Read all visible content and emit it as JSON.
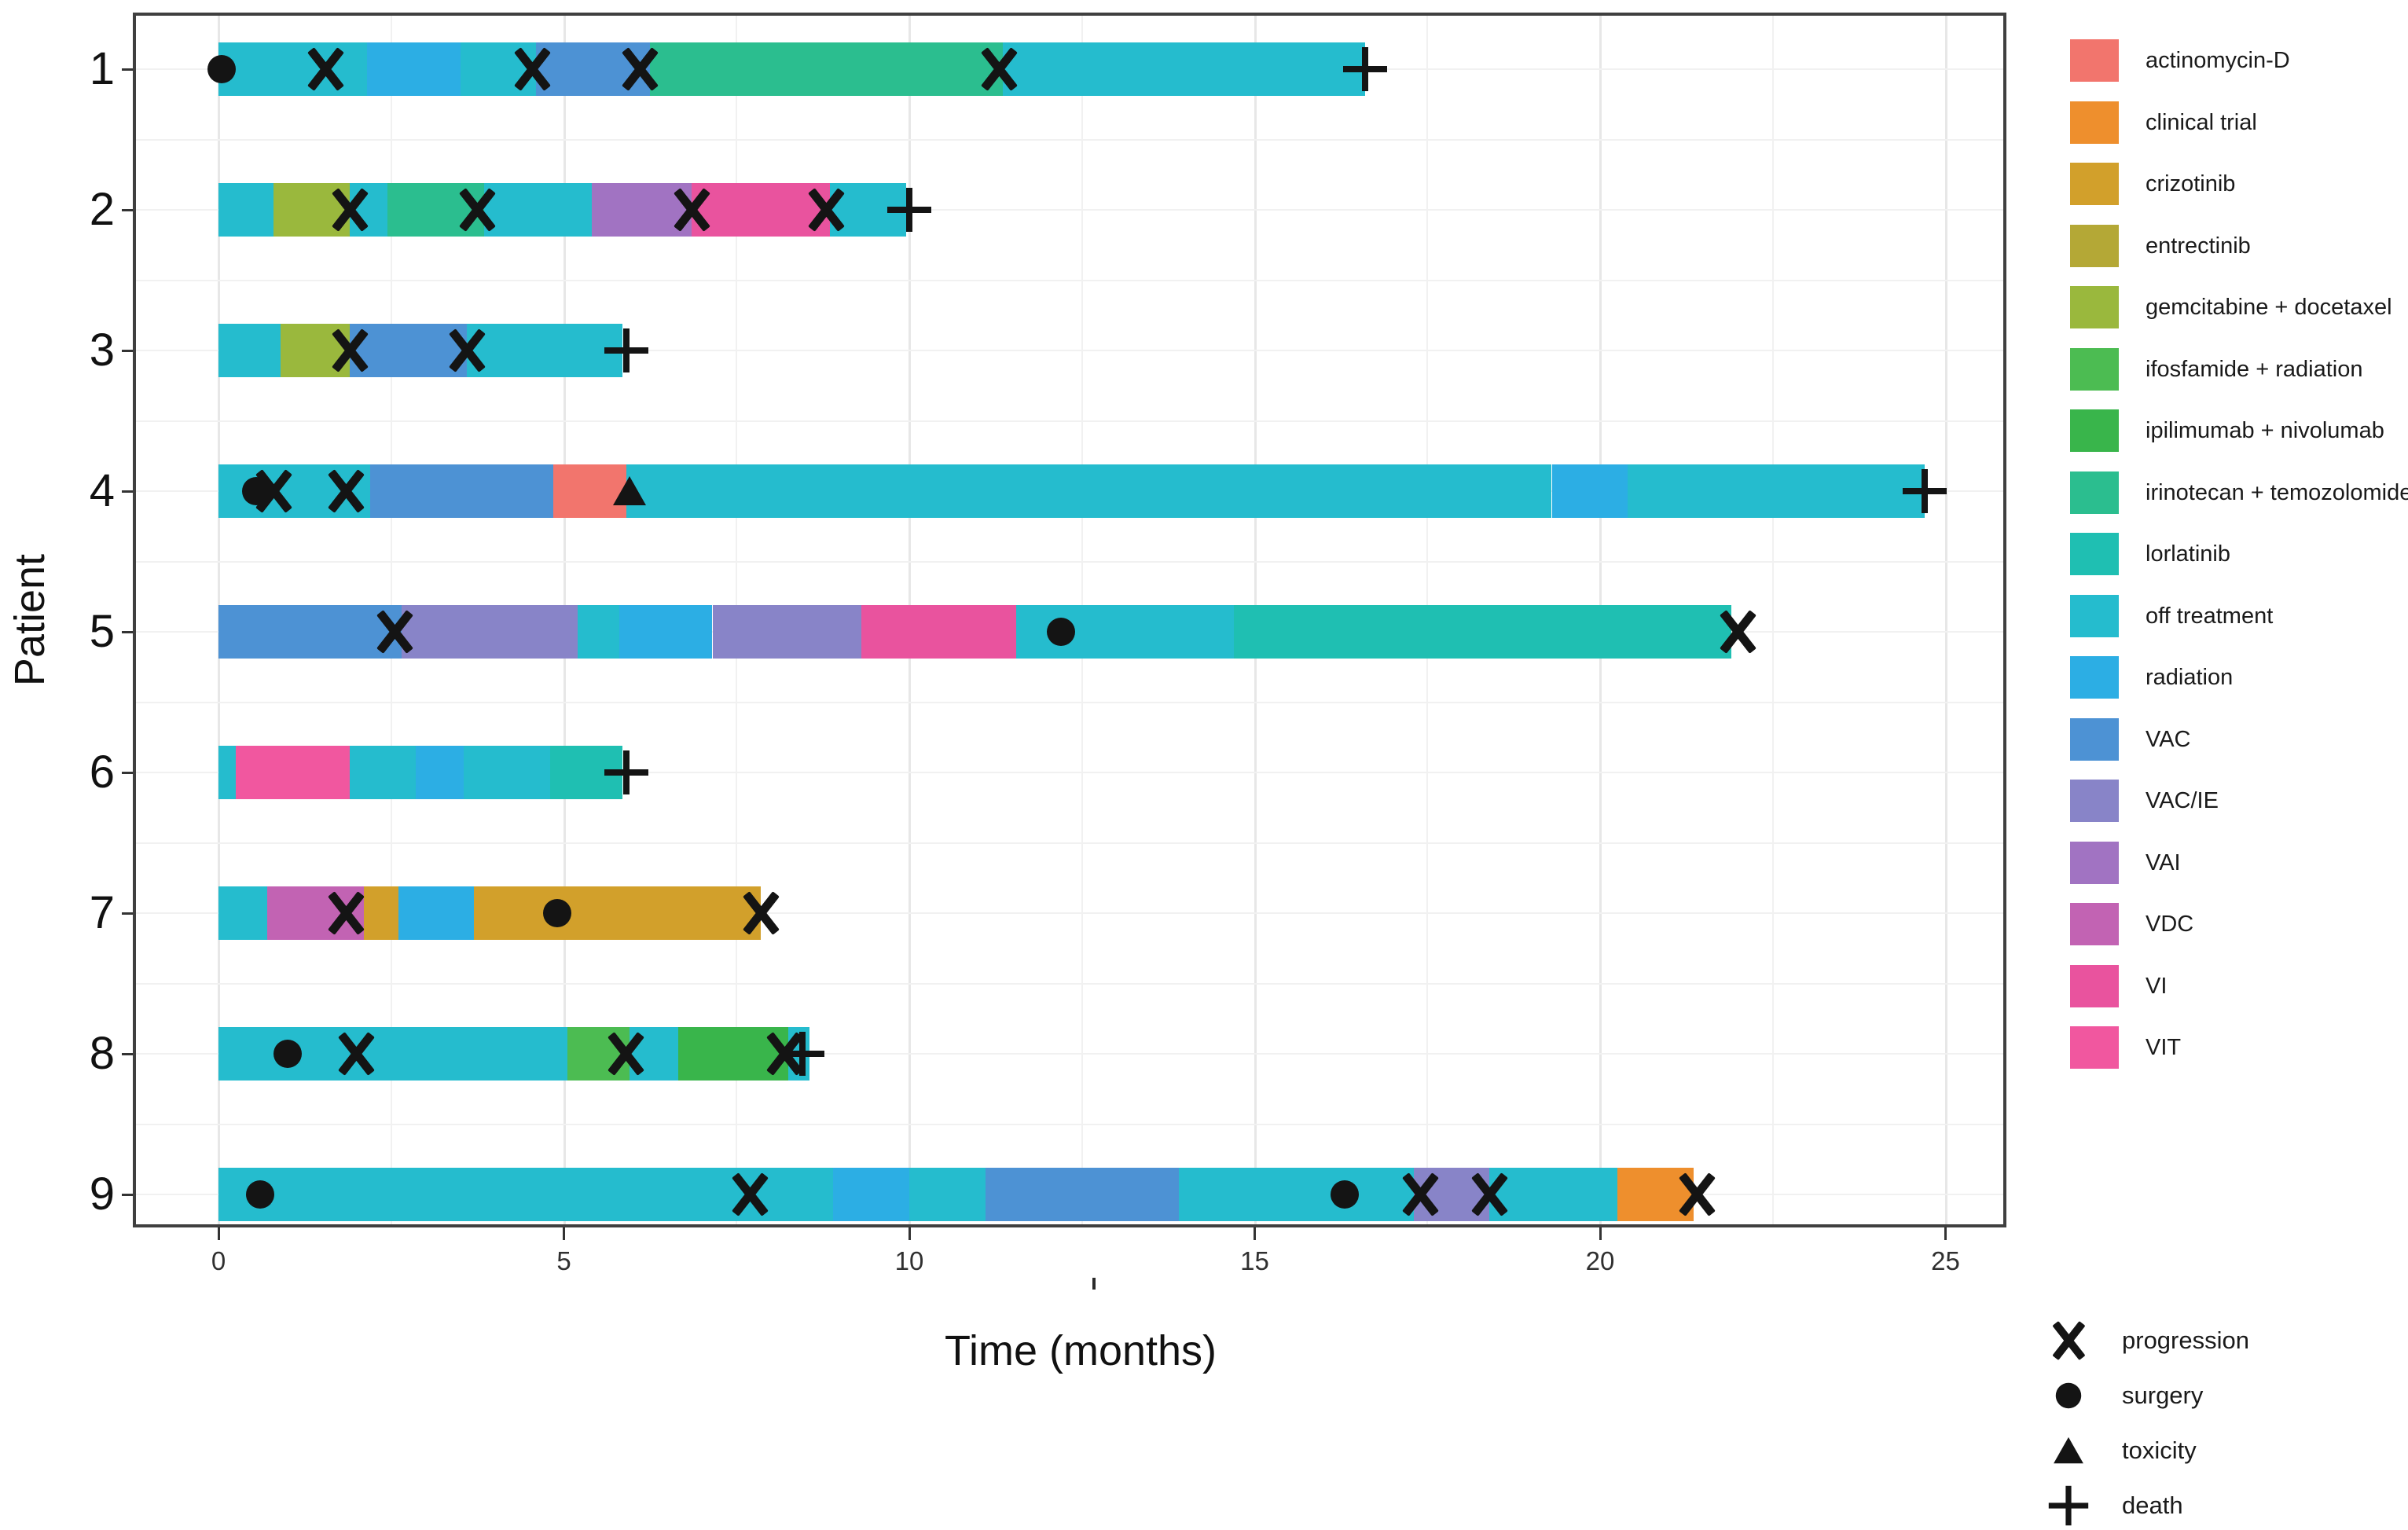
{
  "figure": {
    "background": "#ffffff"
  },
  "axes": {
    "x_title": "Time (months)",
    "y_title": "Patient",
    "x_ticks": [
      "0",
      "5",
      "10",
      "15",
      "20",
      "25"
    ],
    "x_tick_values": [
      0,
      5,
      10,
      15,
      20,
      25
    ],
    "x_minor_step": 2.5
  },
  "style_colors": {
    "marker": "#141414",
    "panel_border": "#3f3f3f",
    "grid_major": "#e7e7e7",
    "grid_minor": "#f1f1f1",
    "tick": "#333333",
    "text": "#111111"
  },
  "chart_data": {
    "type": "bar",
    "subtype": "swimmer-timeline",
    "title": "",
    "xlabel": "Time (months)",
    "ylabel": "Patient",
    "xlim": [
      0,
      25
    ],
    "grid": "minor-and-major-vertical, faint",
    "legend_position": "right",
    "treatments": [
      {
        "name": "actinomycin-D",
        "color": "#F2756D"
      },
      {
        "name": "clinical trial",
        "color": "#EE8F2D"
      },
      {
        "name": "crizotinib",
        "color": "#D2A02B"
      },
      {
        "name": "entrectinib",
        "color": "#B4A836"
      },
      {
        "name": "gemcitabine + docetaxel",
        "color": "#9AB83D"
      },
      {
        "name": "ifosfamide + radiation",
        "color": "#4CBC52"
      },
      {
        "name": "ipilimumab + nivolumab",
        "color": "#39B54B"
      },
      {
        "name": "irinotecan + temozolomide",
        "color": "#2BBE8F"
      },
      {
        "name": "lorlatinib",
        "color": "#1FBFB2"
      },
      {
        "name": "off treatment",
        "color": "#25BCCE"
      },
      {
        "name": "radiation",
        "color": "#2CAEE4"
      },
      {
        "name": "VAC",
        "color": "#4D92D4"
      },
      {
        "name": "VAC/IE",
        "color": "#8884C8"
      },
      {
        "name": "VAI",
        "color": "#A173C2"
      },
      {
        "name": "VDC",
        "color": "#C263B3"
      },
      {
        "name": "VI",
        "color": "#E9539E"
      },
      {
        "name": "VIT",
        "color": "#F1579F"
      }
    ],
    "event_types": [
      {
        "name": "progression",
        "marker": "bold-x"
      },
      {
        "name": "surgery",
        "marker": "filled-circle"
      },
      {
        "name": "toxicity",
        "marker": "filled-triangle"
      },
      {
        "name": "death",
        "marker": "plus-cross"
      }
    ],
    "patients": [
      {
        "id": "1",
        "segments": [
          {
            "treatment": "off treatment",
            "start": 0,
            "end": 2.15
          },
          {
            "treatment": "radiation",
            "start": 2.15,
            "end": 3.5
          },
          {
            "treatment": "off treatment",
            "start": 3.5,
            "end": 4.6
          },
          {
            "treatment": "VAC",
            "start": 4.6,
            "end": 6.25
          },
          {
            "treatment": "irinotecan + temozolomide",
            "start": 6.25,
            "end": 11.35
          },
          {
            "treatment": "off treatment",
            "start": 11.35,
            "end": 16.6
          }
        ],
        "events": [
          {
            "type": "surgery",
            "time": 0.05
          },
          {
            "type": "progression",
            "time": 1.55
          },
          {
            "type": "progression",
            "time": 4.55
          },
          {
            "type": "progression",
            "time": 6.1
          },
          {
            "type": "progression",
            "time": 11.3
          },
          {
            "type": "death",
            "time": 16.6
          }
        ]
      },
      {
        "id": "2",
        "segments": [
          {
            "treatment": "off treatment",
            "start": 0,
            "end": 0.8
          },
          {
            "treatment": "gemcitabine + docetaxel",
            "start": 0.8,
            "end": 1.9
          },
          {
            "treatment": "off treatment",
            "start": 1.9,
            "end": 2.45
          },
          {
            "treatment": "irinotecan + temozolomide",
            "start": 2.45,
            "end": 3.85
          },
          {
            "treatment": "off treatment",
            "start": 3.85,
            "end": 5.4
          },
          {
            "treatment": "VAI",
            "start": 5.4,
            "end": 6.85
          },
          {
            "treatment": "VI",
            "start": 6.85,
            "end": 8.85
          },
          {
            "treatment": "off treatment",
            "start": 8.85,
            "end": 9.95
          }
        ],
        "events": [
          {
            "type": "progression",
            "time": 1.9
          },
          {
            "type": "progression",
            "time": 3.75
          },
          {
            "type": "progression",
            "time": 6.85
          },
          {
            "type": "progression",
            "time": 8.8
          },
          {
            "type": "death",
            "time": 10.0
          }
        ]
      },
      {
        "id": "3",
        "segments": [
          {
            "treatment": "off treatment",
            "start": 0,
            "end": 0.9
          },
          {
            "treatment": "gemcitabine + docetaxel",
            "start": 0.9,
            "end": 1.9
          },
          {
            "treatment": "VAC",
            "start": 1.9,
            "end": 3.6
          },
          {
            "treatment": "off treatment",
            "start": 3.6,
            "end": 5.85
          }
        ],
        "events": [
          {
            "type": "progression",
            "time": 1.9
          },
          {
            "type": "progression",
            "time": 3.6
          },
          {
            "type": "death",
            "time": 5.9
          }
        ]
      },
      {
        "id": "4",
        "segments": [
          {
            "treatment": "off treatment",
            "start": 0,
            "end": 2.2
          },
          {
            "treatment": "VAC",
            "start": 2.2,
            "end": 4.85
          },
          {
            "treatment": "actinomycin-D",
            "start": 4.85,
            "end": 5.9
          },
          {
            "treatment": "off treatment",
            "start": 5.9,
            "end": 19.3
          },
          {
            "treatment": "radiation",
            "start": 19.3,
            "end": 20.4
          },
          {
            "treatment": "off treatment",
            "start": 20.4,
            "end": 24.7
          }
        ],
        "events": [
          {
            "type": "surgery",
            "time": 0.55
          },
          {
            "type": "progression",
            "time": 0.8
          },
          {
            "type": "progression",
            "time": 1.85
          },
          {
            "type": "toxicity",
            "time": 5.95
          },
          {
            "type": "death",
            "time": 24.7
          }
        ]
      },
      {
        "id": "5",
        "segments": [
          {
            "treatment": "VAC",
            "start": 0,
            "end": 2.65
          },
          {
            "treatment": "VAC/IE",
            "start": 2.65,
            "end": 5.2
          },
          {
            "treatment": "off treatment",
            "start": 5.2,
            "end": 5.8
          },
          {
            "treatment": "radiation",
            "start": 5.8,
            "end": 7.15
          },
          {
            "treatment": "VAC/IE",
            "start": 7.15,
            "end": 9.3
          },
          {
            "treatment": "VI",
            "start": 9.3,
            "end": 11.55
          },
          {
            "treatment": "off treatment",
            "start": 11.55,
            "end": 14.7
          },
          {
            "treatment": "lorlatinib",
            "start": 14.7,
            "end": 21.9
          }
        ],
        "events": [
          {
            "type": "progression",
            "time": 2.55
          },
          {
            "type": "surgery",
            "time": 12.2
          },
          {
            "type": "progression",
            "time": 22.0
          }
        ]
      },
      {
        "id": "6",
        "segments": [
          {
            "treatment": "off treatment",
            "start": 0,
            "end": 0.25
          },
          {
            "treatment": "VIT",
            "start": 0.25,
            "end": 1.9
          },
          {
            "treatment": "off treatment",
            "start": 1.9,
            "end": 2.85
          },
          {
            "treatment": "radiation",
            "start": 2.85,
            "end": 3.55
          },
          {
            "treatment": "off treatment",
            "start": 3.55,
            "end": 4.8
          },
          {
            "treatment": "lorlatinib",
            "start": 4.8,
            "end": 5.85
          }
        ],
        "events": [
          {
            "type": "death",
            "time": 5.9
          }
        ]
      },
      {
        "id": "7",
        "segments": [
          {
            "treatment": "off treatment",
            "start": 0,
            "end": 0.7
          },
          {
            "treatment": "VDC",
            "start": 0.7,
            "end": 2.1
          },
          {
            "treatment": "crizotinib",
            "start": 2.1,
            "end": 2.6
          },
          {
            "treatment": "radiation",
            "start": 2.6,
            "end": 3.7
          },
          {
            "treatment": "crizotinib",
            "start": 3.7,
            "end": 7.85
          }
        ],
        "events": [
          {
            "type": "progression",
            "time": 1.85
          },
          {
            "type": "surgery",
            "time": 4.9
          },
          {
            "type": "progression",
            "time": 7.85
          }
        ]
      },
      {
        "id": "8",
        "segments": [
          {
            "treatment": "off treatment",
            "start": 0,
            "end": 5.05
          },
          {
            "treatment": "ifosfamide + radiation",
            "start": 5.05,
            "end": 5.95
          },
          {
            "treatment": "off treatment",
            "start": 5.95,
            "end": 6.65
          },
          {
            "treatment": "ipilimumab + nivolumab",
            "start": 6.65,
            "end": 8.25
          },
          {
            "treatment": "off treatment",
            "start": 8.25,
            "end": 8.55
          }
        ],
        "events": [
          {
            "type": "surgery",
            "time": 1.0
          },
          {
            "type": "progression",
            "time": 2.0
          },
          {
            "type": "progression",
            "time": 5.9
          },
          {
            "type": "progression",
            "time": 8.2
          },
          {
            "type": "death",
            "time": 8.45
          }
        ]
      },
      {
        "id": "9",
        "segments": [
          {
            "treatment": "off treatment",
            "start": 0,
            "end": 8.9
          },
          {
            "treatment": "radiation",
            "start": 8.9,
            "end": 10.0
          },
          {
            "treatment": "off treatment",
            "start": 10.0,
            "end": 11.1
          },
          {
            "treatment": "VAC",
            "start": 11.1,
            "end": 13.9
          },
          {
            "treatment": "off treatment",
            "start": 13.9,
            "end": 17.3
          },
          {
            "treatment": "VAC/IE",
            "start": 17.3,
            "end": 18.4
          },
          {
            "treatment": "off treatment",
            "start": 18.4,
            "end": 20.25
          },
          {
            "treatment": "clinical trial",
            "start": 20.25,
            "end": 21.35
          }
        ],
        "events": [
          {
            "type": "surgery",
            "time": 0.6
          },
          {
            "type": "progression",
            "time": 7.7
          },
          {
            "type": "surgery",
            "time": 16.3
          },
          {
            "type": "progression",
            "time": 17.4
          },
          {
            "type": "progression",
            "time": 18.4
          },
          {
            "type": "progression",
            "time": 21.4
          }
        ]
      }
    ]
  },
  "legend": {
    "fill_title": "",
    "marker_items": [
      {
        "label": "progression"
      },
      {
        "label": "surgery"
      },
      {
        "label": "toxicity"
      },
      {
        "label": "death"
      }
    ]
  }
}
